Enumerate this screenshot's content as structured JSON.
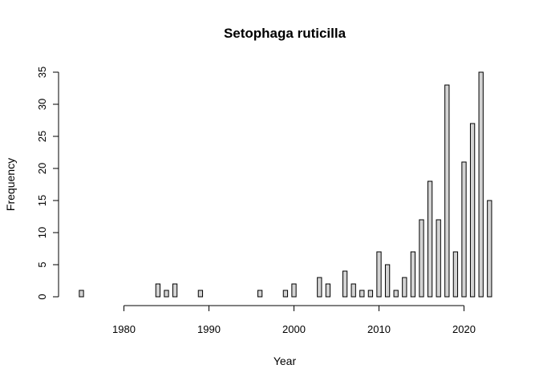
{
  "chart_data": {
    "type": "bar",
    "title": "Setophaga ruticilla",
    "xlabel": "Year",
    "ylabel": "Frequency",
    "bar_fill": "#d3d3d3",
    "bar_stroke": "#000000",
    "ylim": [
      0,
      35
    ],
    "yticks": [
      0,
      5,
      10,
      15,
      20,
      25,
      30,
      35
    ],
    "xticks": [
      1980,
      1990,
      2000,
      2010,
      2020
    ],
    "xlim": [
      1975,
      2023
    ],
    "x": [
      1975,
      1976,
      1977,
      1978,
      1979,
      1980,
      1981,
      1982,
      1983,
      1984,
      1985,
      1986,
      1987,
      1988,
      1989,
      1990,
      1991,
      1992,
      1993,
      1994,
      1995,
      1996,
      1997,
      1998,
      1999,
      2000,
      2001,
      2002,
      2003,
      2004,
      2005,
      2006,
      2007,
      2008,
      2009,
      2010,
      2011,
      2012,
      2013,
      2014,
      2015,
      2016,
      2017,
      2018,
      2019,
      2020,
      2021,
      2022,
      2023
    ],
    "values": [
      1,
      0,
      0,
      0,
      0,
      0,
      0,
      0,
      0,
      2,
      1,
      2,
      0,
      0,
      1,
      0,
      0,
      0,
      0,
      0,
      0,
      1,
      0,
      0,
      1,
      2,
      0,
      0,
      3,
      2,
      0,
      4,
      2,
      1,
      1,
      7,
      5,
      1,
      3,
      7,
      12,
      18,
      12,
      33,
      7,
      21,
      27,
      35,
      15
    ]
  }
}
